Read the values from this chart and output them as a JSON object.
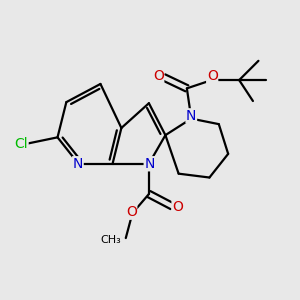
{
  "background_color": "#e8e8e8",
  "bond_color": "#000000",
  "bond_width": 1.6,
  "atom_colors": {
    "N": "#0000cc",
    "O": "#cc0000",
    "Cl": "#00bb00",
    "C": "#000000"
  },
  "font_size": 9,
  "figsize": [
    3.0,
    3.0
  ],
  "dpi": 100
}
